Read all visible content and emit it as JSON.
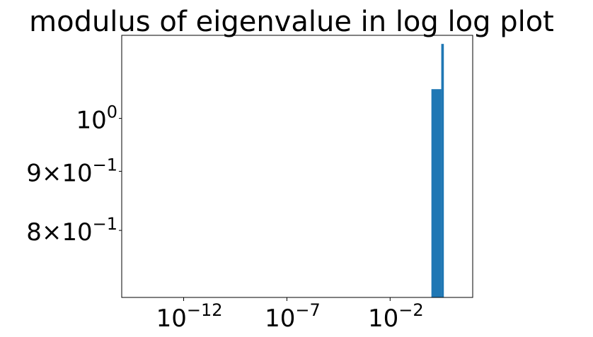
{
  "chart_data": {
    "type": "bar",
    "title": "modulus of eigenvalue in log log plot",
    "xlabel": "",
    "ylabel": "",
    "xscale": "log",
    "yscale": "log",
    "grid": false,
    "legend": "none",
    "color": "#1f77b4",
    "xlim": [
      1e-15,
      100
    ],
    "ylim": [
      0.7,
      1.18
    ],
    "x_ticks": [
      {
        "value": 1e-12,
        "base": "10",
        "exp": "−12"
      },
      {
        "value": 1e-07,
        "base": "10",
        "exp": "−7"
      },
      {
        "value": 0.01,
        "base": "10",
        "exp": "−2"
      }
    ],
    "y_ticks": [
      {
        "value": 1.0,
        "mant": "",
        "base": "10",
        "exp": "0"
      },
      {
        "value": 0.9,
        "mant": "9×",
        "base": "10",
        "exp": "−1"
      },
      {
        "value": 0.8,
        "mant": "8×",
        "base": "10",
        "exp": "−1"
      }
    ],
    "bars": [
      {
        "x0": 1e-14,
        "x1": 1.0,
        "value": 0.7
      },
      {
        "x0": 1.0,
        "x1": 3.0,
        "value": 1.06
      },
      {
        "x0": 3.0,
        "x1": 4.0,
        "value": 1.16
      }
    ]
  }
}
